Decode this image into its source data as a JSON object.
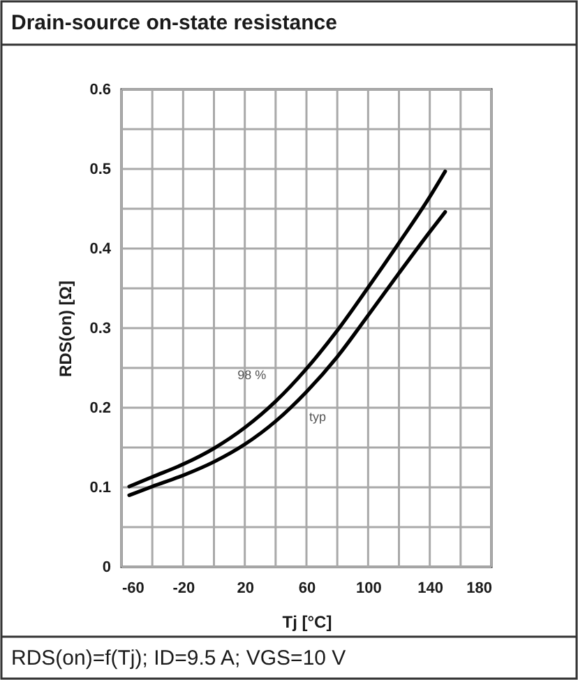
{
  "chart_data": {
    "type": "line",
    "title": "Drain-source on-state resistance",
    "xlabel": "Tj [°C]",
    "ylabel": "RDS(on) [Ω]",
    "annotations": [
      "RDS(on)=f(Tj); ID=9.5 A; VGS=10 V"
    ],
    "x": [
      -55,
      -40,
      -20,
      0,
      20,
      40,
      60,
      80,
      100,
      120,
      140,
      150
    ],
    "series": [
      {
        "name": "98 %",
        "color": "#000000",
        "values": [
          0.101,
          0.113,
          0.129,
          0.149,
          0.175,
          0.208,
          0.249,
          0.297,
          0.351,
          0.407,
          0.465,
          0.497
        ]
      },
      {
        "name": "typ",
        "color": "#000000",
        "values": [
          0.09,
          0.101,
          0.115,
          0.132,
          0.154,
          0.183,
          0.22,
          0.264,
          0.316,
          0.369,
          0.421,
          0.446
        ]
      }
    ],
    "xlim": [
      -60,
      180
    ],
    "xticks": [
      -60,
      {
        "value": -40,
        "label": null
      },
      -20,
      {
        "value": 0,
        "label": null
      },
      20,
      {
        "value": 40,
        "label": null
      },
      60,
      {
        "value": 80,
        "label": null
      },
      100,
      {
        "value": 120,
        "label": null
      },
      140,
      {
        "value": 160,
        "label": null
      },
      180
    ],
    "ylim": [
      0,
      0.6
    ],
    "yticks": [
      0,
      {
        "value": 0.05,
        "label": null
      },
      0.1,
      {
        "value": 0.15,
        "label": null
      },
      0.2,
      {
        "value": 0.25,
        "label": null
      },
      0.3,
      {
        "value": 0.35,
        "label": null
      },
      0.4,
      {
        "value": 0.45,
        "label": null
      },
      0.5,
      {
        "value": 0.55,
        "label": null
      },
      0.6
    ],
    "grid": true,
    "line_style": "solid"
  }
}
